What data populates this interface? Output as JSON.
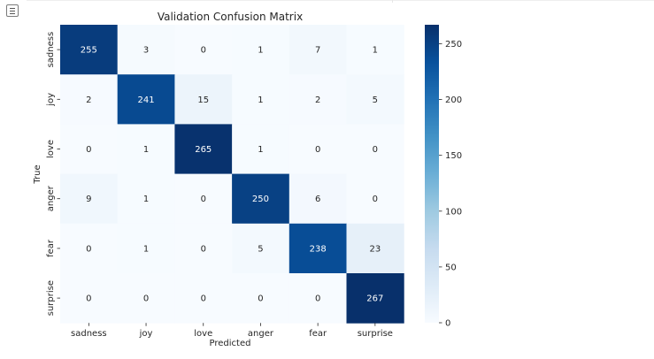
{
  "toolbar": {
    "output_icon": "output-toggle-icon"
  },
  "chart_data": {
    "type": "heatmap",
    "title": "Validation Confusion Matrix",
    "xlabel": "Predicted",
    "ylabel": "True",
    "x_categories": [
      "sadness",
      "joy",
      "love",
      "anger",
      "fear",
      "surprise"
    ],
    "y_categories": [
      "sadness",
      "joy",
      "love",
      "anger",
      "fear",
      "surprise"
    ],
    "values": [
      [
        255,
        3,
        0,
        1,
        7,
        1
      ],
      [
        2,
        241,
        15,
        1,
        2,
        5
      ],
      [
        0,
        1,
        265,
        1,
        0,
        0
      ],
      [
        9,
        1,
        0,
        250,
        6,
        0
      ],
      [
        0,
        1,
        0,
        5,
        238,
        23
      ],
      [
        0,
        0,
        0,
        0,
        0,
        267
      ]
    ],
    "colormap": "Blues",
    "color_low": "#f7fbff",
    "color_high": "#08306b",
    "vmin": 0,
    "vmax": 267,
    "colorbar_ticks": [
      0,
      50,
      100,
      150,
      200,
      250
    ],
    "annotated": true
  }
}
